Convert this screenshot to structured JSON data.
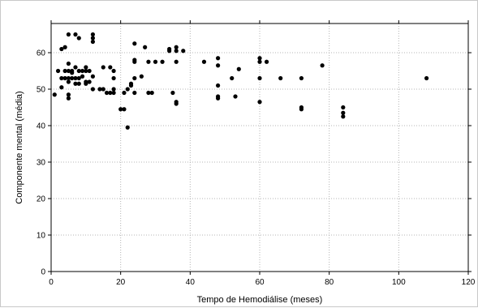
{
  "chart_data": {
    "type": "scatter",
    "xlabel": "Tempo de Hemodiálise (meses)",
    "ylabel": "Componente mental (média)",
    "xlim": [
      0,
      120
    ],
    "ylim": [
      0,
      68
    ],
    "x_ticks": [
      "0",
      "20",
      "40",
      "60",
      "80",
      "100",
      "120"
    ],
    "y_ticks": [
      "0",
      "10",
      "20",
      "30",
      "40",
      "50",
      "60"
    ],
    "grid": true,
    "marker_color": "#000000",
    "points": [
      [
        1,
        48.5
      ],
      [
        2,
        55
      ],
      [
        3,
        50.5
      ],
      [
        3,
        53
      ],
      [
        3,
        61
      ],
      [
        4,
        55
      ],
      [
        4,
        61.5
      ],
      [
        4,
        53
      ],
      [
        5,
        65
      ],
      [
        5,
        52
      ],
      [
        5,
        48.5
      ],
      [
        5,
        47.5
      ],
      [
        5,
        55
      ],
      [
        5,
        57
      ],
      [
        5,
        53
      ],
      [
        6,
        54.5
      ],
      [
        6,
        55
      ],
      [
        6,
        53
      ],
      [
        7,
        65
      ],
      [
        7,
        51.5
      ],
      [
        7,
        53
      ],
      [
        7,
        56
      ],
      [
        8,
        55
      ],
      [
        8,
        53
      ],
      [
        8,
        64
      ],
      [
        8,
        51.5
      ],
      [
        9,
        55
      ],
      [
        9,
        53.5
      ],
      [
        10,
        55
      ],
      [
        10,
        52
      ],
      [
        10,
        51.5
      ],
      [
        10,
        56
      ],
      [
        11,
        55
      ],
      [
        11,
        52
      ],
      [
        12,
        65
      ],
      [
        12,
        64
      ],
      [
        12,
        63
      ],
      [
        12,
        53.5
      ],
      [
        12,
        50
      ],
      [
        14,
        50
      ],
      [
        15,
        50
      ],
      [
        15,
        56
      ],
      [
        16,
        49
      ],
      [
        17,
        56
      ],
      [
        17,
        49
      ],
      [
        18,
        55
      ],
      [
        18,
        53
      ],
      [
        18,
        50
      ],
      [
        18,
        49
      ],
      [
        20,
        44.5
      ],
      [
        21,
        44.5
      ],
      [
        21,
        49
      ],
      [
        22,
        50
      ],
      [
        22,
        39.5
      ],
      [
        23,
        51.5
      ],
      [
        23,
        51
      ],
      [
        24,
        62.5
      ],
      [
        24,
        58
      ],
      [
        24,
        57.5
      ],
      [
        24,
        53
      ],
      [
        24,
        49
      ],
      [
        26,
        53.5
      ],
      [
        27,
        61.5
      ],
      [
        28,
        57.5
      ],
      [
        28,
        49
      ],
      [
        29,
        49
      ],
      [
        30,
        57.5
      ],
      [
        32,
        57.5
      ],
      [
        34,
        61
      ],
      [
        34,
        60.5
      ],
      [
        35,
        49
      ],
      [
        36,
        61.5
      ],
      [
        36,
        60.5
      ],
      [
        36,
        57.5
      ],
      [
        36,
        46.5
      ],
      [
        36,
        46
      ],
      [
        38,
        60.5
      ],
      [
        44,
        57.5
      ],
      [
        48,
        58.5
      ],
      [
        48,
        56.5
      ],
      [
        48,
        51
      ],
      [
        48,
        48
      ],
      [
        48,
        47.5
      ],
      [
        52,
        53
      ],
      [
        53,
        48
      ],
      [
        54,
        55.5
      ],
      [
        60,
        58.5
      ],
      [
        60,
        57.5
      ],
      [
        60,
        53
      ],
      [
        60,
        46.5
      ],
      [
        62,
        57.5
      ],
      [
        66,
        53
      ],
      [
        72,
        53
      ],
      [
        72,
        45
      ],
      [
        72,
        44.5
      ],
      [
        78,
        56.5
      ],
      [
        84,
        45
      ],
      [
        84,
        43.5
      ],
      [
        84,
        42.5
      ],
      [
        108,
        53
      ]
    ]
  }
}
